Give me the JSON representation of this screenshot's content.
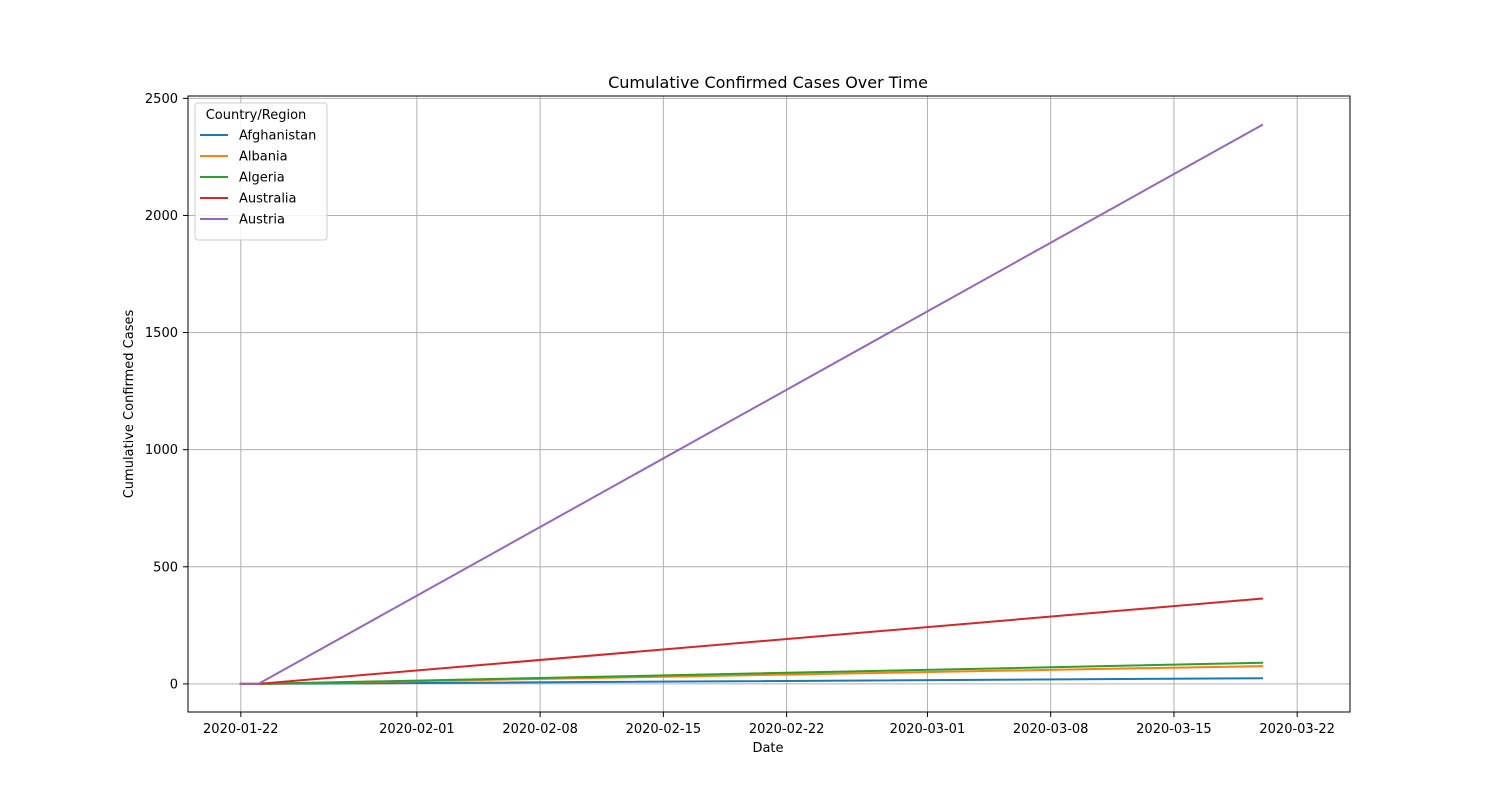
{
  "chart_data": {
    "type": "line",
    "title": "Cumulative Confirmed Cases Over Time",
    "xlabel": "Date",
    "ylabel": "Cumulative Confirmed Cases",
    "x_ticks": [
      "2020-01-22",
      "2020-02-01",
      "2020-02-08",
      "2020-02-15",
      "2020-02-22",
      "2020-03-01",
      "2020-03-08",
      "2020-03-15",
      "2020-03-22"
    ],
    "xlim": [
      "2020-01-19",
      "2020-03-25"
    ],
    "y_ticks": [
      0,
      500,
      1000,
      1500,
      2000,
      2500
    ],
    "ylim": [
      -120,
      2510
    ],
    "grid": true,
    "legend": {
      "title": "Country/Region",
      "position": "top-left"
    },
    "series": [
      {
        "name": "Afghanistan",
        "color": "#1f77b4",
        "points": [
          [
            "2020-01-22",
            0
          ],
          [
            "2020-01-23",
            0
          ],
          [
            "2020-03-20",
            24
          ]
        ]
      },
      {
        "name": "Albania",
        "color": "#ff7f0e",
        "points": [
          [
            "2020-01-22",
            0
          ],
          [
            "2020-01-23",
            0
          ],
          [
            "2020-03-20",
            76
          ]
        ]
      },
      {
        "name": "Algeria",
        "color": "#2ca02c",
        "points": [
          [
            "2020-01-22",
            0
          ],
          [
            "2020-01-23",
            0
          ],
          [
            "2020-03-20",
            90
          ]
        ]
      },
      {
        "name": "Australia",
        "color": "#d62728",
        "points": [
          [
            "2020-01-22",
            0
          ],
          [
            "2020-01-23",
            0
          ],
          [
            "2020-03-20",
            364
          ]
        ]
      },
      {
        "name": "Austria",
        "color": "#9467bd",
        "points": [
          [
            "2020-01-22",
            0
          ],
          [
            "2020-01-23",
            0
          ],
          [
            "2020-03-20",
            2386
          ]
        ]
      }
    ]
  }
}
